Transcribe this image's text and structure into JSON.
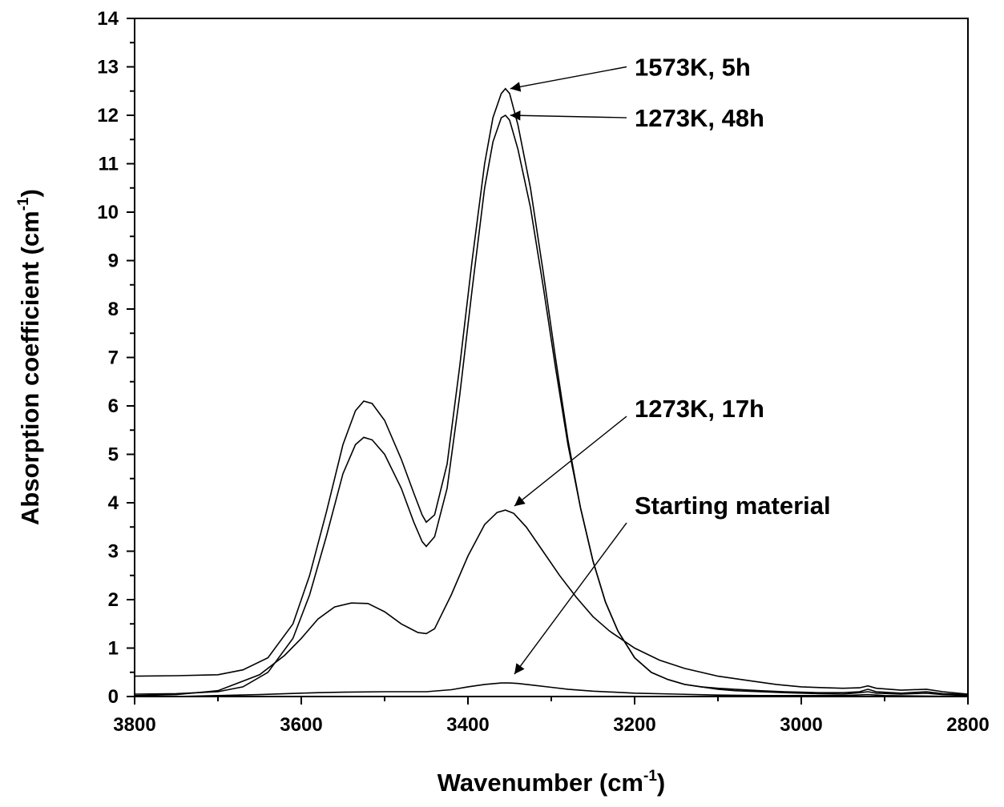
{
  "chart_data": {
    "type": "line",
    "xlabel": "Wavenumber (cm",
    "xlabel_sup": "-1",
    "xlabel_end": ")",
    "ylabel": "Absorption coefficient (cm",
    "ylabel_sup": "-1",
    "ylabel_end": ")",
    "xlim": [
      3800,
      2800
    ],
    "ylim": [
      0,
      14
    ],
    "x_reversed": true,
    "x_ticks": [
      3800,
      3600,
      3400,
      3200,
      3000,
      2800
    ],
    "y_ticks": [
      0,
      1,
      2,
      3,
      4,
      5,
      6,
      7,
      8,
      9,
      10,
      11,
      12,
      13,
      14
    ],
    "grid": false,
    "legend": "none",
    "series": [
      {
        "x": [
          3800,
          3750,
          3700,
          3670,
          3640,
          3610,
          3590,
          3570,
          3550,
          3535,
          3525,
          3515,
          3500,
          3480,
          3465,
          3455,
          3450,
          3440,
          3425,
          3410,
          3395,
          3380,
          3370,
          3360,
          3355,
          3350,
          3340,
          3325,
          3310,
          3295,
          3280,
          3265,
          3250,
          3235,
          3220,
          3200,
          3180,
          3160,
          3140,
          3120,
          3100,
          3080,
          3050,
          3020,
          3000,
          2980,
          2950,
          2930,
          2920,
          2910,
          2880,
          2850,
          2830,
          2800
        ],
        "values": [
          0.42,
          0.43,
          0.45,
          0.55,
          0.8,
          1.5,
          2.5,
          3.8,
          5.2,
          5.9,
          6.1,
          6.05,
          5.7,
          4.9,
          4.2,
          3.75,
          3.6,
          3.75,
          4.8,
          6.8,
          9.0,
          11.0,
          11.95,
          12.45,
          12.55,
          12.45,
          11.8,
          10.5,
          8.8,
          7.0,
          5.3,
          3.9,
          2.8,
          1.95,
          1.35,
          0.8,
          0.5,
          0.35,
          0.25,
          0.2,
          0.17,
          0.15,
          0.12,
          0.1,
          0.09,
          0.08,
          0.08,
          0.1,
          0.15,
          0.1,
          0.07,
          0.1,
          0.06,
          0.04
        ]
      },
      {
        "x": [
          3800,
          3750,
          3700,
          3670,
          3640,
          3610,
          3590,
          3570,
          3550,
          3535,
          3525,
          3515,
          3500,
          3480,
          3465,
          3455,
          3450,
          3440,
          3425,
          3410,
          3395,
          3380,
          3370,
          3360,
          3355,
          3350,
          3340,
          3325,
          3310,
          3295,
          3280,
          3265,
          3250,
          3235,
          3220,
          3200,
          3180,
          3160,
          3140,
          3120,
          3100,
          3080,
          3050,
          3020,
          3000,
          2980,
          2950,
          2930,
          2920,
          2910,
          2880,
          2850,
          2830,
          2800
        ],
        "values": [
          0.05,
          0.06,
          0.1,
          0.2,
          0.5,
          1.2,
          2.1,
          3.3,
          4.6,
          5.2,
          5.35,
          5.3,
          5.0,
          4.3,
          3.6,
          3.2,
          3.1,
          3.3,
          4.3,
          6.2,
          8.4,
          10.5,
          11.45,
          11.95,
          12.0,
          11.9,
          11.3,
          10.1,
          8.5,
          6.8,
          5.2,
          3.9,
          2.8,
          1.95,
          1.35,
          0.8,
          0.5,
          0.35,
          0.25,
          0.2,
          0.15,
          0.12,
          0.1,
          0.08,
          0.07,
          0.06,
          0.05,
          0.08,
          0.1,
          0.07,
          0.05,
          0.07,
          0.04,
          0.02
        ]
      },
      {
        "x": [
          3800,
          3750,
          3700,
          3650,
          3620,
          3600,
          3580,
          3560,
          3540,
          3520,
          3500,
          3480,
          3460,
          3450,
          3440,
          3420,
          3400,
          3380,
          3365,
          3355,
          3345,
          3330,
          3310,
          3290,
          3270,
          3250,
          3230,
          3200,
          3170,
          3140,
          3100,
          3060,
          3030,
          3000,
          2970,
          2950,
          2930,
          2920,
          2910,
          2880,
          2850,
          2830,
          2800
        ],
        "values": [
          0.02,
          0.04,
          0.12,
          0.45,
          0.85,
          1.2,
          1.6,
          1.85,
          1.93,
          1.92,
          1.75,
          1.5,
          1.32,
          1.3,
          1.4,
          2.1,
          2.9,
          3.55,
          3.8,
          3.85,
          3.78,
          3.5,
          3.0,
          2.5,
          2.05,
          1.65,
          1.35,
          1.0,
          0.75,
          0.58,
          0.42,
          0.32,
          0.25,
          0.2,
          0.18,
          0.17,
          0.18,
          0.22,
          0.17,
          0.13,
          0.15,
          0.1,
          0.05
        ]
      },
      {
        "x": [
          3800,
          3750,
          3700,
          3650,
          3600,
          3580,
          3550,
          3500,
          3450,
          3420,
          3400,
          3380,
          3360,
          3350,
          3340,
          3320,
          3300,
          3280,
          3250,
          3200,
          3150,
          3100,
          3050,
          3000,
          2950,
          2920,
          2900,
          2850,
          2800
        ],
        "values": [
          0.0,
          0.0,
          0.02,
          0.04,
          0.07,
          0.08,
          0.09,
          0.1,
          0.1,
          0.14,
          0.2,
          0.25,
          0.28,
          0.28,
          0.27,
          0.23,
          0.19,
          0.15,
          0.11,
          0.07,
          0.05,
          0.03,
          0.02,
          0.02,
          0.02,
          0.04,
          0.02,
          0.01,
          0.0
        ]
      }
    ],
    "annotations": [
      {
        "text": "1573K, 5h",
        "target_x": 3355,
        "target_y": 12.55,
        "text_x": 3200,
        "text_y": 13.0
      },
      {
        "text": "1273K, 48h",
        "target_x": 3355,
        "target_y": 12.0,
        "text_x": 3200,
        "text_y": 11.95
      },
      {
        "text": "1273K, 17h",
        "target_x": 3350,
        "target_y": 3.8,
        "text_x": 3200,
        "text_y": 5.95
      },
      {
        "text": "Starting material",
        "target_x": 3350,
        "target_y": 0.33,
        "text_x": 3200,
        "text_y": 3.95
      }
    ]
  }
}
